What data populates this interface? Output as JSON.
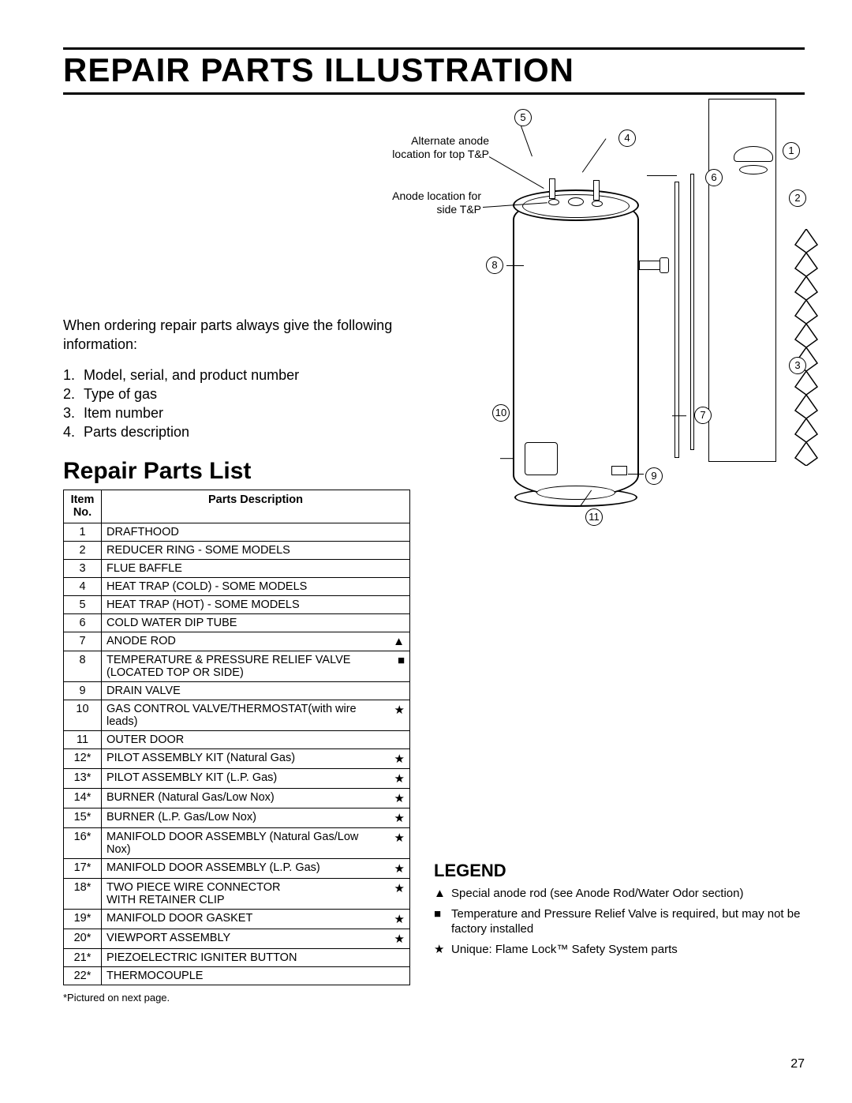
{
  "title": "REPAIR PARTS ILLUSTRATION",
  "intro": "When ordering repair parts always give the following information:",
  "order_list": [
    "Model, serial, and product number",
    "Type of gas",
    "Item number",
    "Parts description"
  ],
  "subhead": "Repair Parts List",
  "table": {
    "head_item": "Item\nNo.",
    "head_desc": "Parts Description",
    "rows": [
      {
        "n": "1",
        "d": "DRAFTHOOD",
        "s": ""
      },
      {
        "n": "2",
        "d": "REDUCER RING - SOME MODELS",
        "s": ""
      },
      {
        "n": "3",
        "d": "FLUE BAFFLE",
        "s": ""
      },
      {
        "n": "4",
        "d": "HEAT TRAP (COLD) - SOME MODELS",
        "s": ""
      },
      {
        "n": "5",
        "d": "HEAT TRAP (HOT) - SOME MODELS",
        "s": ""
      },
      {
        "n": "6",
        "d": "COLD WATER DIP TUBE",
        "s": ""
      },
      {
        "n": "7",
        "d": "ANODE ROD",
        "s": "▲"
      },
      {
        "n": "8",
        "d": "TEMPERATURE  & PRESSURE RELIEF VALVE (LOCATED TOP OR SIDE)",
        "s": "■"
      },
      {
        "n": "9",
        "d": "DRAIN VALVE",
        "s": ""
      },
      {
        "n": "10",
        "d": "GAS CONTROL VALVE/THERMOSTAT(with wire leads)",
        "s": "★"
      },
      {
        "n": "11",
        "d": "OUTER DOOR",
        "s": ""
      },
      {
        "n": "12*",
        "d": "PILOT ASSEMBLY KIT (Natural Gas)",
        "s": "★"
      },
      {
        "n": "13*",
        "d": "PILOT ASSEMBLY KIT (L.P. Gas)",
        "s": "★"
      },
      {
        "n": "14*",
        "d": "BURNER (Natural Gas/Low Nox)",
        "s": "★"
      },
      {
        "n": "15*",
        "d": "BURNER (L.P. Gas/Low Nox)",
        "s": "★"
      },
      {
        "n": "16*",
        "d": "MANIFOLD DOOR ASSEMBLY (Natural Gas/Low Nox)",
        "s": "★"
      },
      {
        "n": "17*",
        "d": "MANIFOLD DOOR ASSEMBLY (L.P. Gas)",
        "s": "★"
      },
      {
        "n": "18*",
        "d": "TWO PIECE WIRE CONNECTOR\nWITH RETAINER CLIP",
        "s": "★"
      },
      {
        "n": "19*",
        "d": "MANIFOLD DOOR GASKET",
        "s": "★"
      },
      {
        "n": "20*",
        "d": "VIEWPORT ASSEMBLY",
        "s": "★"
      },
      {
        "n": "21*",
        "d": "PIEZOELECTRIC IGNITER  BUTTON",
        "s": ""
      },
      {
        "n": "22*",
        "d": "THERMOCOUPLE",
        "s": ""
      }
    ]
  },
  "footnote": "*Pictured on next page.",
  "legend_head": "LEGEND",
  "legend": [
    {
      "s": "▲",
      "t": "Special anode rod (see Anode Rod/Water Odor section)"
    },
    {
      "s": "■",
      "t": "Temperature and Pressure Relief Valve is required, but may not be factory installed"
    },
    {
      "s": "★",
      "t": "Unique: Flame Lock™ Safety System parts"
    }
  ],
  "diagram": {
    "label_alt": "Alternate anode location for top T&P",
    "label_anode": "Anode location for side T&P",
    "callouts": [
      "1",
      "2",
      "3",
      "4",
      "5",
      "6",
      "7",
      "8",
      "9",
      "10",
      "11"
    ]
  },
  "page_number": "27"
}
